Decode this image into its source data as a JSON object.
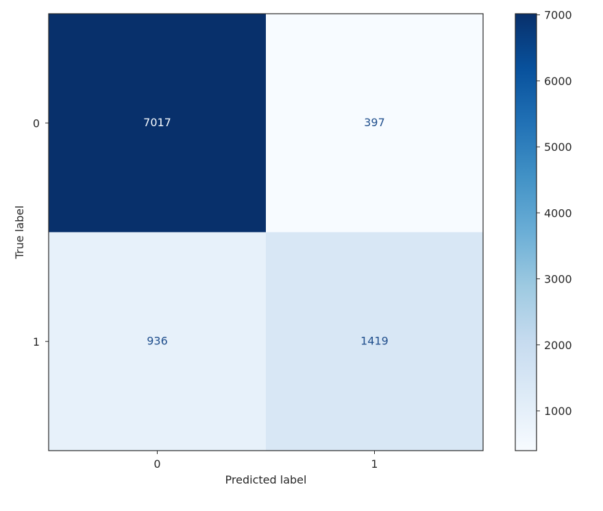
{
  "chart_data": {
    "type": "heatmap",
    "title": "",
    "xlabel": "Predicted label",
    "ylabel": "True label",
    "x_categories": [
      "0",
      "1"
    ],
    "y_categories": [
      "0",
      "1"
    ],
    "matrix": [
      [
        7017,
        397
      ],
      [
        936,
        1419
      ]
    ],
    "colormap": "Blues",
    "colors": {
      "low": "#f7fbff",
      "high": "#08306b",
      "text_on_dark": "#f7fbff",
      "text_on_light": "#1f4e8c",
      "axis": "#262626"
    },
    "colorbar": {
      "range": [
        397,
        7017
      ],
      "ticks": [
        1000,
        2000,
        3000,
        4000,
        5000,
        6000,
        7000
      ]
    },
    "grid": false
  }
}
